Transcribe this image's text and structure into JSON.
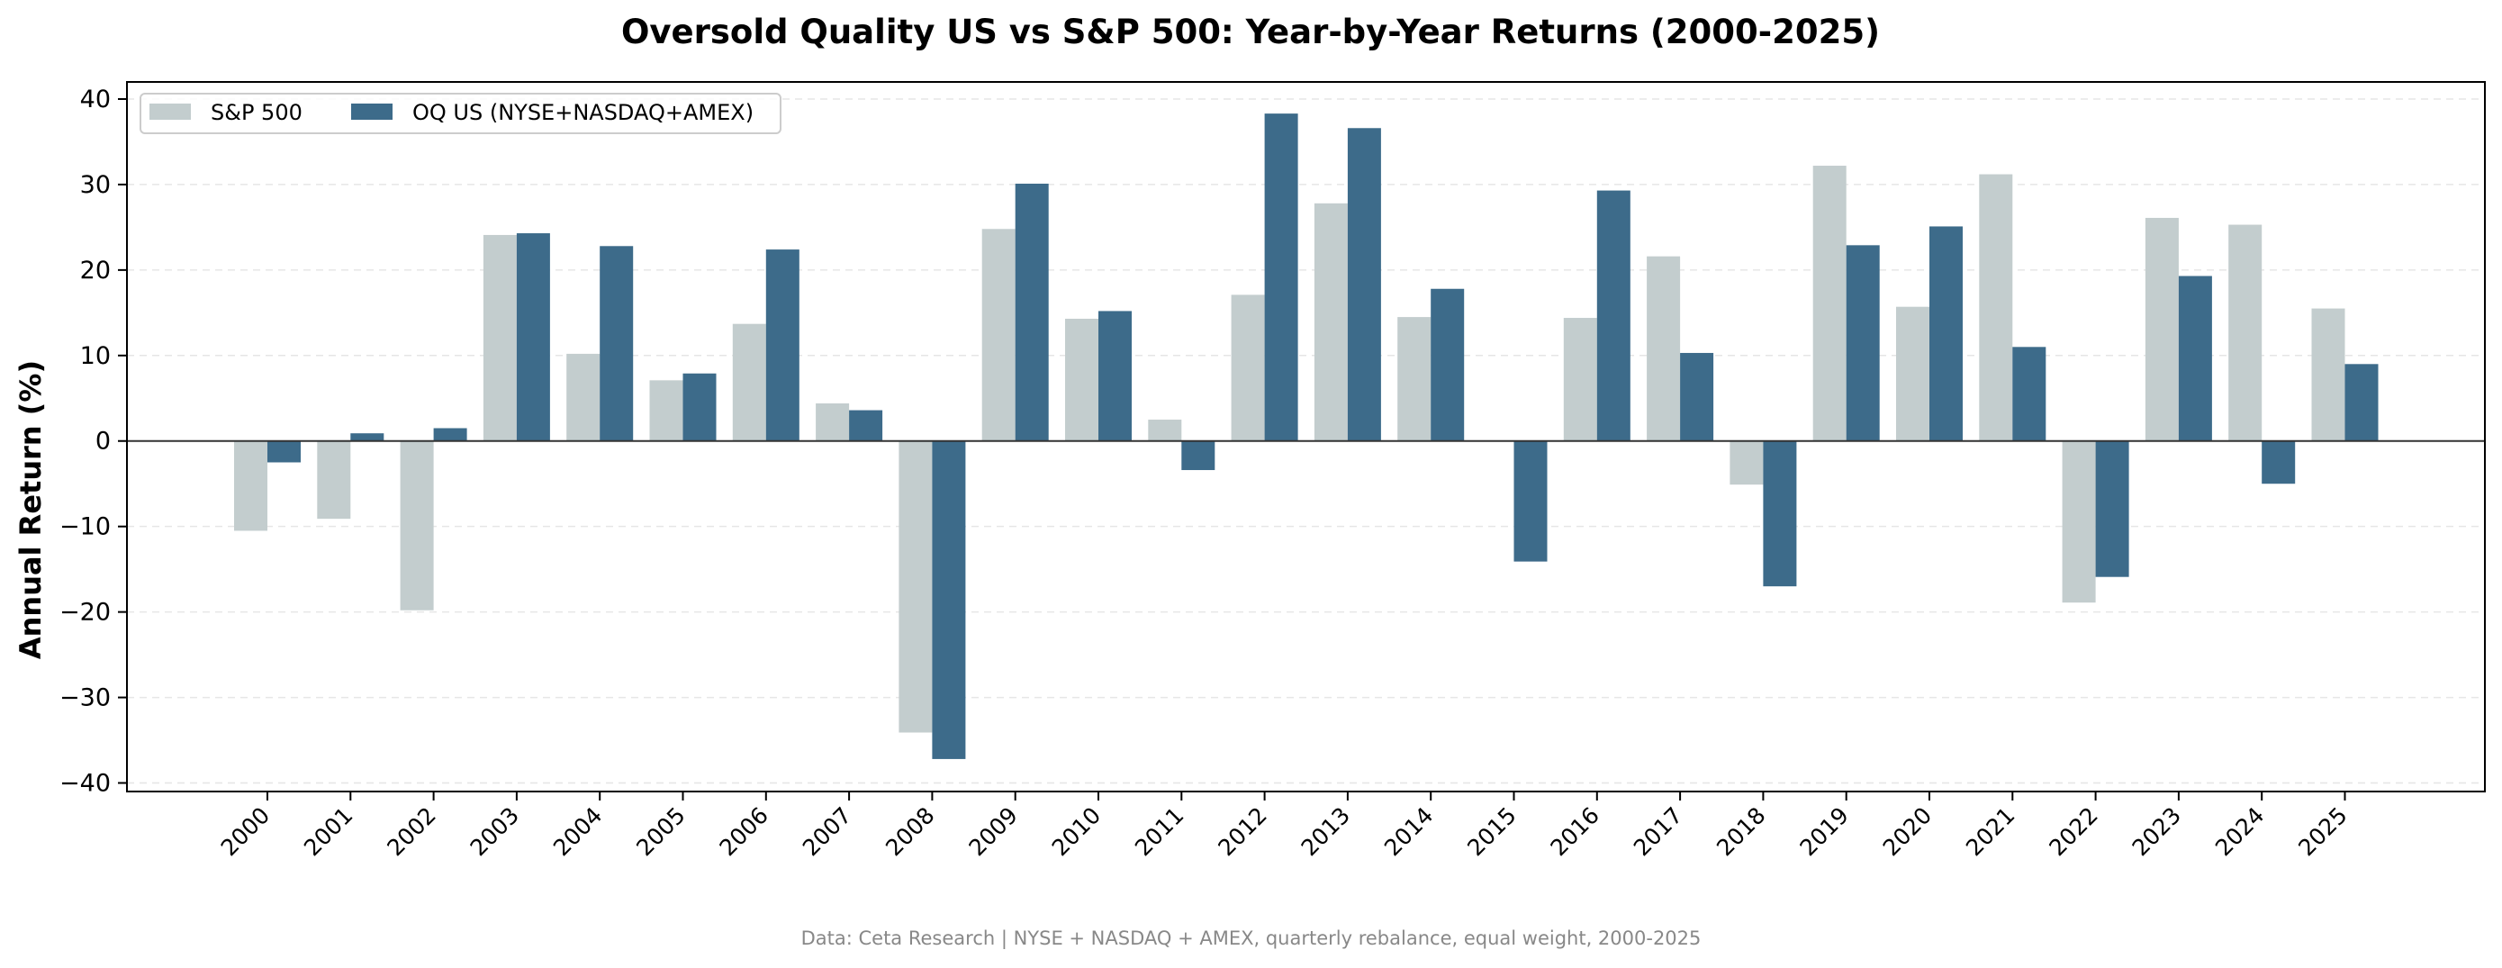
{
  "chart_data": {
    "type": "bar",
    "title": "Oversold Quality US vs S&P 500: Year-by-Year Returns (2000-2025)",
    "xlabel": "",
    "ylabel": "Annual Return (%)",
    "ylim": [
      -41,
      42
    ],
    "yticks": [
      40,
      30,
      20,
      10,
      0,
      -10,
      -20,
      -30,
      -40
    ],
    "ytick_labels": [
      "40",
      "30",
      "20",
      "10",
      "0",
      "−10",
      "−20",
      "−30",
      "−40"
    ],
    "grid": "horizontal dashed",
    "legend_position": "top-left",
    "categories": [
      "2000",
      "2001",
      "2002",
      "2003",
      "2004",
      "2005",
      "2006",
      "2007",
      "2008",
      "2009",
      "2010",
      "2011",
      "2012",
      "2013",
      "2014",
      "2015",
      "2016",
      "2017",
      "2018",
      "2019",
      "2020",
      "2021",
      "2022",
      "2023",
      "2024",
      "2025"
    ],
    "series": [
      {
        "name": "S&P 500",
        "color": "#c3cdce",
        "values": [
          -10.5,
          -9.1,
          -19.8,
          24.1,
          10.2,
          7.1,
          13.7,
          4.4,
          -34.1,
          24.8,
          14.3,
          2.5,
          17.1,
          27.8,
          14.5,
          0.0,
          14.4,
          21.6,
          -5.1,
          32.2,
          15.7,
          31.2,
          -18.9,
          26.1,
          25.3,
          15.5
        ]
      },
      {
        "name": "OQ US (NYSE+NASDAQ+AMEX)",
        "color": "#3d6b8a",
        "values": [
          -2.5,
          0.9,
          1.5,
          24.3,
          22.8,
          7.9,
          22.4,
          3.6,
          -37.2,
          30.1,
          15.2,
          -3.4,
          38.3,
          36.6,
          17.8,
          -14.1,
          29.3,
          10.3,
          -17.0,
          22.9,
          25.1,
          11.0,
          -15.9,
          19.3,
          -5.0,
          9.0
        ]
      }
    ],
    "footnote": "Data: Ceta Research | NYSE + NASDAQ + AMEX, quarterly rebalance, equal weight, 2000-2025"
  }
}
